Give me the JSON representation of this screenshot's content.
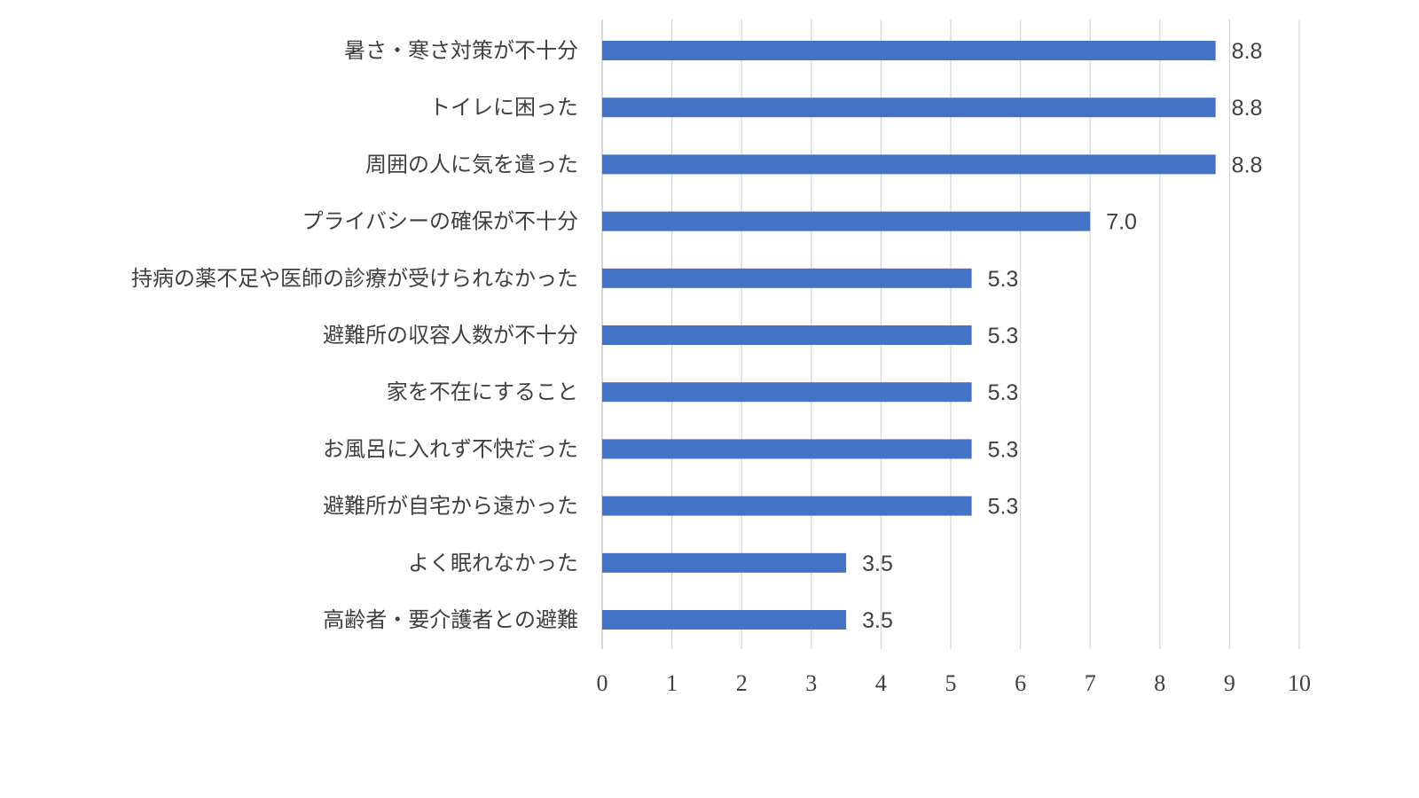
{
  "chart_data": {
    "type": "bar",
    "orientation": "horizontal",
    "title": "",
    "xlabel": "",
    "ylabel": "",
    "categories": [
      "暑さ・寒さ対策が不十分",
      "トイレに困った",
      "周囲の人に気を遣った",
      "プライバシーの確保が不十分",
      "持病の薬不足や医師の診療が受けられなかった",
      "避難所の収容人数が不十分",
      "家を不在にすること",
      "お風呂に入れず不快だった",
      "避難所が自宅から遠かった",
      "よく眠れなかった",
      "高齢者・要介護者との避難"
    ],
    "values": [
      8.8,
      8.8,
      8.8,
      7.0,
      5.3,
      5.3,
      5.3,
      5.3,
      5.3,
      3.5,
      3.5
    ],
    "data_labels": [
      "8.8",
      "8.8",
      "8.8",
      "7.0",
      "5.3",
      "5.3",
      "5.3",
      "5.3",
      "5.3",
      "3.5",
      "3.5"
    ],
    "xlim": [
      0,
      10
    ],
    "xticks": [
      "0",
      "1",
      "2",
      "3",
      "4",
      "5",
      "6",
      "7",
      "8",
      "9",
      "10"
    ],
    "grid": true,
    "legend": "none",
    "bar_color": "#4472c4"
  }
}
